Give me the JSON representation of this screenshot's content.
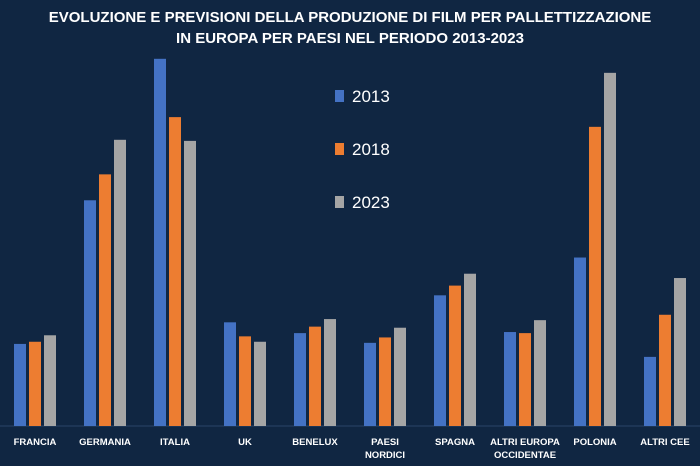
{
  "chart_data": {
    "type": "bar",
    "title_lines": [
      "EVOLUZIONE E PREVISIONI DELLA PRODUZIONE DI FILM PER PALLETTIZZAZIONE",
      "IN EUROPA PER PAESI NEL PERIODO 2013-2023"
    ],
    "categories": [
      [
        "FRANCIA"
      ],
      [
        "GERMANIA"
      ],
      [
        "ITALIA"
      ],
      [
        "UK"
      ],
      [
        "BENELUX"
      ],
      [
        "PAESI",
        "NORDICI"
      ],
      [
        "SPAGNA"
      ],
      [
        "ALTRI EUROPA",
        "OCCIDENTAE"
      ],
      [
        "POLONIA"
      ],
      [
        "ALTRI CEE"
      ]
    ],
    "series": [
      {
        "name": "2013",
        "color": "#4472C4",
        "values": [
          76,
          209,
          340,
          96,
          86,
          77,
          121,
          87,
          156,
          64
        ]
      },
      {
        "name": "2018",
        "color": "#ED7D31",
        "values": [
          78,
          233,
          286,
          83,
          92,
          82,
          130,
          86,
          277,
          103
        ]
      },
      {
        "name": "2023",
        "color": "#A5A5A5",
        "values": [
          84,
          265,
          264,
          78,
          99,
          91,
          141,
          98,
          327,
          137
        ]
      }
    ],
    "ylim": [
      0,
      350
    ],
    "xlabel": "",
    "ylabel": "",
    "grid": false,
    "legend_position": "top-center"
  }
}
